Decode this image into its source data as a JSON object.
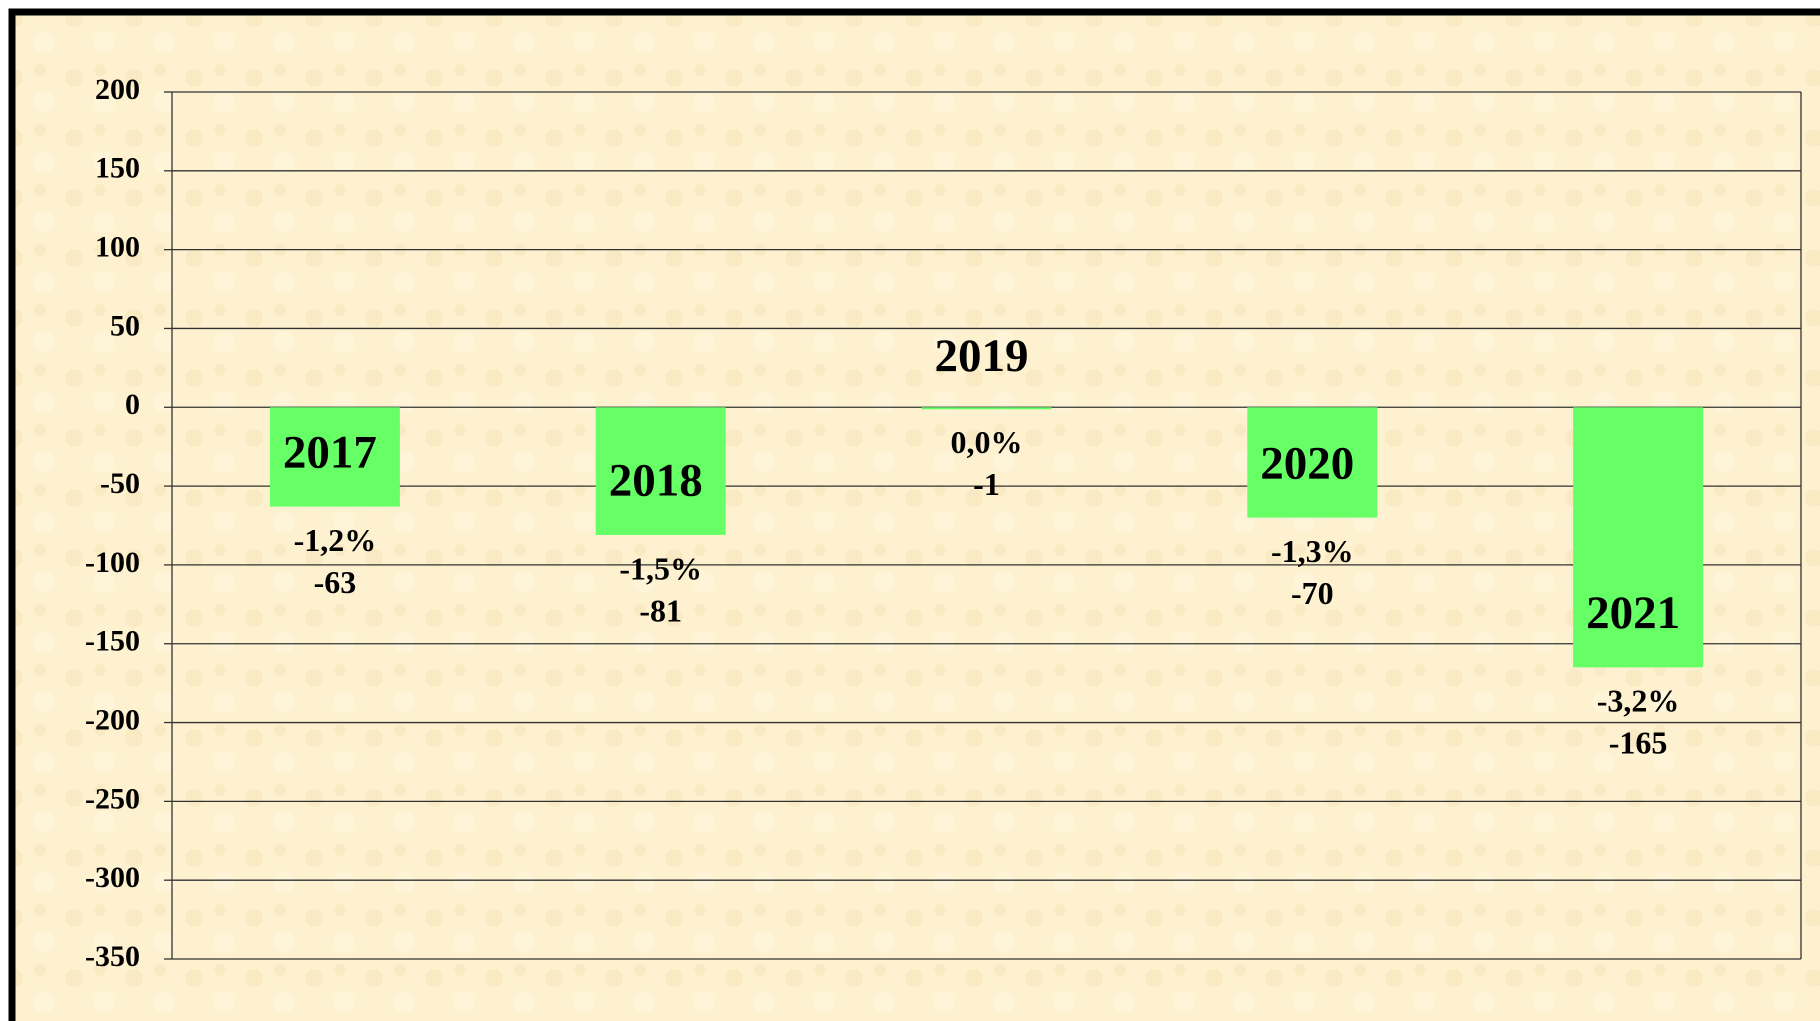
{
  "chart_data": {
    "type": "bar",
    "categories": [
      "2017",
      "2018",
      "2019",
      "2020",
      "2021"
    ],
    "values": [
      -63,
      -81,
      -1,
      -70,
      -165
    ],
    "percent_labels": [
      "-1,2%",
      "-1,5%",
      "0,0%",
      "-1,3%",
      "-3,2%"
    ],
    "color": "#66ff66",
    "ylim": [
      -350,
      200
    ],
    "yticks": [
      -350,
      -300,
      -250,
      -200,
      -150,
      -100,
      -50,
      0,
      50,
      100,
      150,
      200
    ],
    "grid": true
  }
}
